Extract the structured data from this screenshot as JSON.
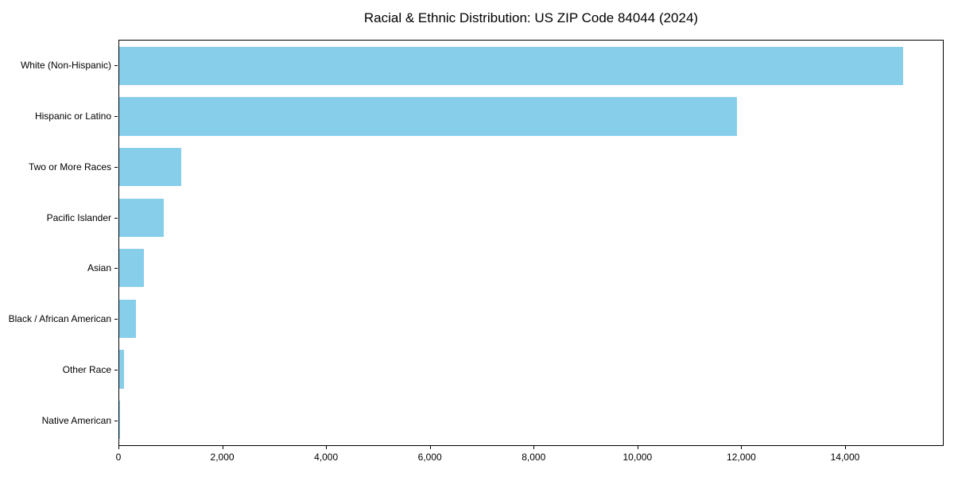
{
  "chart_data": {
    "type": "bar",
    "orientation": "horizontal",
    "title": "Racial & Ethnic Distribution: US ZIP Code 84044 (2024)",
    "categories": [
      "White (Non-Hispanic)",
      "Hispanic or Latino",
      "Two or More Races",
      "Pacific Islander",
      "Asian",
      "Black / African American",
      "Other Race",
      "Native American"
    ],
    "values": [
      15140,
      11930,
      1200,
      860,
      475,
      320,
      90,
      15
    ],
    "bar_color": "#87ceeb",
    "xlabel": "",
    "ylabel": "",
    "xlim": [
      0,
      15900
    ],
    "xticks": [
      0,
      2000,
      4000,
      6000,
      8000,
      10000,
      12000,
      14000
    ],
    "xtick_labels": [
      "0",
      "2,000",
      "4,000",
      "6,000",
      "8,000",
      "10,000",
      "12,000",
      "14,000"
    ],
    "grid": false,
    "legend": null,
    "axis_color": "#000000",
    "background_color": "#ffffff"
  }
}
